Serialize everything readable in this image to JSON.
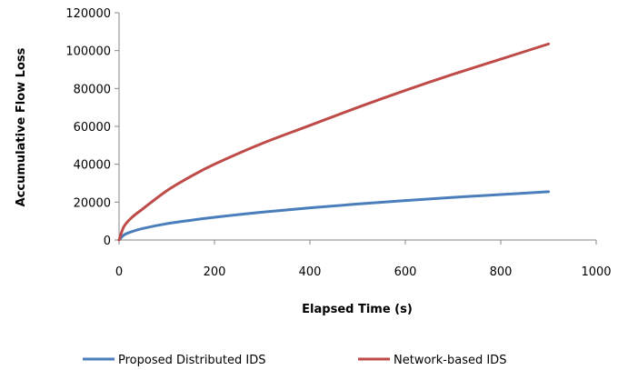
{
  "chart_data": {
    "type": "line",
    "title": "",
    "xlabel": "Elapsed Time (s)",
    "ylabel": "Accumulative Flow Loss",
    "xlim": [
      0,
      1000
    ],
    "ylim": [
      0,
      120000
    ],
    "x_ticks": [
      0,
      200,
      400,
      600,
      800,
      1000
    ],
    "y_ticks": [
      0,
      20000,
      40000,
      60000,
      80000,
      100000,
      120000
    ],
    "x_tick_labels": [
      "0",
      "200",
      "400",
      "600",
      "800",
      "1000"
    ],
    "y_tick_labels": [
      "0",
      "20000",
      "40000",
      "60000",
      "80000",
      "100000",
      "120000"
    ],
    "grid": false,
    "legend_position": "bottom",
    "x": [
      0,
      10,
      25,
      50,
      100,
      150,
      200,
      300,
      400,
      500,
      600,
      700,
      800,
      900
    ],
    "series": [
      {
        "name": "Proposed Distributed IDS",
        "color": "#4a7ebb",
        "values": [
          0,
          2600,
          4300,
          6100,
          8600,
          10400,
          12000,
          14700,
          17000,
          19000,
          20800,
          22500,
          24000,
          25500
        ]
      },
      {
        "name": "Network-based IDS",
        "color": "#be4b48",
        "values": [
          0,
          7000,
          11500,
          16500,
          26000,
          33500,
          40000,
          51000,
          60500,
          70000,
          79000,
          87500,
          95500,
          103500
        ]
      }
    ]
  }
}
